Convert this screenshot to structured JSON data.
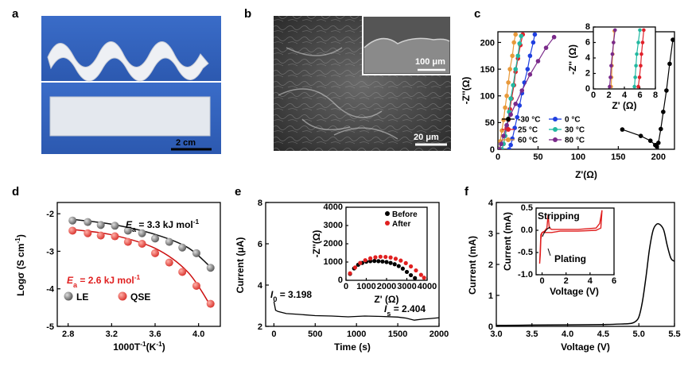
{
  "panels": {
    "a": {
      "label": "a",
      "scale_bar": "2 cm"
    },
    "b": {
      "label": "b",
      "scale_bar_main": "20 μm",
      "scale_bar_inset": "100 μm"
    },
    "c": {
      "label": "c",
      "eq": "",
      "_": ""
    },
    "d": {
      "label": "d"
    },
    "e": {
      "label": "e"
    },
    "f": {
      "label": "f"
    }
  },
  "annotations": {
    "d_ea_le_prefix": "E",
    "d_ea_le_sub": "a",
    "d_ea_le_value": " = 3.3 kJ mol",
    "d_ea_qse_value": " = 2.6 kJ mol",
    "d_ea_sup": "-1",
    "e_i0_prefix": "I",
    "e_i0_sub": "0",
    "e_i0_value": " = 3.198",
    "e_is_prefix": "I",
    "e_is_sub": "s",
    "e_is_value": " = 2.404",
    "f_stripping": "Stripping",
    "f_plating": "Plating"
  },
  "colors": {
    "c_m30": "#000000",
    "c_0": "#1f3fe0",
    "c_25": "#e0202a",
    "c_30": "#22b8a0",
    "c_60": "#e8993a",
    "c_80": "#7a2a8a",
    "d_le": "#555555",
    "d_qse": "#e84a4a",
    "d_fit_le": "#111111",
    "d_fit_qse": "#cc1010",
    "e_before": "#000000",
    "e_after": "#e02020",
    "f_inset": "#e02020"
  },
  "chart_data": [
    {
      "id": "c",
      "type": "scatter",
      "title": "",
      "xlabel": "Z'(Ω)",
      "ylabel": "-Z''(Ω)",
      "xlim": [
        0,
        220
      ],
      "ylim": [
        0,
        220
      ],
      "xticks": [
        0,
        50,
        100,
        150,
        200
      ],
      "yticks": [
        0,
        50,
        100,
        150,
        200
      ],
      "series": [
        {
          "name": "-30 °C",
          "color_key": "c_m30",
          "points": [
            [
              155,
              37
            ],
            [
              178,
              25
            ],
            [
              190,
              16
            ],
            [
              196,
              8
            ],
            [
              198,
              5
            ],
            [
              200,
              12
            ],
            [
              203,
              38
            ],
            [
              206,
              70
            ],
            [
              210,
              110
            ],
            [
              214,
              160
            ],
            [
              218,
              205
            ]
          ]
        },
        {
          "name": "0 °C",
          "color_key": "c_0",
          "points": [
            [
              14,
              0
            ],
            [
              16,
              8
            ],
            [
              18,
              20
            ],
            [
              21,
              40
            ],
            [
              24,
              60
            ],
            [
              27,
              82
            ],
            [
              30,
              105
            ],
            [
              33,
              125
            ],
            [
              37,
              150
            ],
            [
              40,
              175
            ],
            [
              44,
              200
            ],
            [
              46,
              215
            ]
          ]
        },
        {
          "name": "25 °C",
          "color_key": "c_25",
          "points": [
            [
              5,
              0
            ],
            [
              7,
              10
            ],
            [
              9,
              25
            ],
            [
              11,
              40
            ],
            [
              13,
              55
            ],
            [
              15,
              75
            ],
            [
              17,
              95
            ],
            [
              20,
              120
            ],
            [
              22,
              145
            ],
            [
              25,
              170
            ],
            [
              28,
              195
            ],
            [
              31,
              215
            ]
          ]
        },
        {
          "name": "30 °C",
          "color_key": "c_30",
          "points": [
            [
              5,
              0
            ],
            [
              7,
              10
            ],
            [
              9,
              25
            ],
            [
              11,
              45
            ],
            [
              14,
              70
            ],
            [
              16,
              95
            ],
            [
              19,
              120
            ],
            [
              22,
              150
            ],
            [
              25,
              175
            ],
            [
              27,
              198
            ],
            [
              29,
              212
            ]
          ]
        },
        {
          "name": "60 °C",
          "color_key": "c_60",
          "points": [
            [
              2,
              0
            ],
            [
              3,
              15
            ],
            [
              5,
              35
            ],
            [
              7,
              55
            ],
            [
              9,
              78
            ],
            [
              11,
              100
            ],
            [
              13,
              125
            ],
            [
              15,
              150
            ],
            [
              18,
              175
            ],
            [
              20,
              200
            ],
            [
              22,
              215
            ]
          ]
        },
        {
          "name": "80 °C",
          "color_key": "c_80",
          "points": [
            [
              2,
              0
            ],
            [
              4,
              10
            ],
            [
              7,
              25
            ],
            [
              11,
              45
            ],
            [
              16,
              65
            ],
            [
              22,
              85
            ],
            [
              30,
              110
            ],
            [
              40,
              140
            ],
            [
              50,
              165
            ],
            [
              60,
              190
            ],
            [
              70,
              210
            ]
          ]
        }
      ],
      "inset": {
        "xlabel": "Z' (Ω)",
        "ylabel": "-Z'' (Ω)",
        "xlim": [
          0,
          8
        ],
        "ylim": [
          0,
          8
        ],
        "xticks": [
          0,
          2,
          4,
          6,
          8
        ],
        "yticks": [
          0,
          2,
          4,
          6,
          8
        ],
        "series": [
          {
            "color_key": "c_60",
            "points": [
              [
                2.3,
                0.3
              ],
              [
                2.35,
                1.5
              ],
              [
                2.4,
                3
              ],
              [
                2.5,
                4.5
              ],
              [
                2.6,
                6
              ],
              [
                2.7,
                7.5
              ]
            ]
          },
          {
            "color_key": "c_80",
            "points": [
              [
                2.1,
                0.3
              ],
              [
                2.2,
                1.5
              ],
              [
                2.3,
                3
              ],
              [
                2.45,
                4.5
              ],
              [
                2.6,
                6
              ],
              [
                2.8,
                7.6
              ]
            ]
          },
          {
            "color_key": "c_30",
            "points": [
              [
                5.3,
                0.3
              ],
              [
                5.4,
                1.5
              ],
              [
                5.5,
                3
              ],
              [
                5.6,
                4.5
              ],
              [
                5.8,
                6
              ],
              [
                6.0,
                7.6
              ]
            ]
          },
          {
            "color_key": "c_25",
            "points": [
              [
                5.8,
                0.3
              ],
              [
                5.95,
                1.5
              ],
              [
                6.1,
                3
              ],
              [
                6.2,
                4.5
              ],
              [
                6.35,
                6
              ],
              [
                6.5,
                7.6
              ]
            ]
          }
        ]
      }
    },
    {
      "id": "d",
      "type": "scatter",
      "title": "",
      "xlabel": "1000T",
      "xlabel_sup": "-1",
      "xlabel_unit": "(K",
      "xlabel_unit_sup": "-1",
      "xlabel_end": ")",
      "ylabel": "Logσ (S cm",
      "ylabel_sup": "-1",
      "ylabel_end": ")",
      "xlim": [
        2.7,
        4.2
      ],
      "ylim": [
        -5,
        -1.7
      ],
      "xticks": [
        2.8,
        3.2,
        3.6,
        4.0
      ],
      "yticks": [
        -2,
        -3,
        -4,
        -5
      ],
      "series": [
        {
          "name": "LE",
          "color_key": "d_le",
          "x": [
            2.84,
            2.98,
            3.1,
            3.23,
            3.35,
            3.48,
            3.6,
            3.73,
            3.85,
            3.98,
            4.11
          ],
          "y": [
            -2.18,
            -2.22,
            -2.3,
            -2.32,
            -2.45,
            -2.52,
            -2.66,
            -2.75,
            -2.9,
            -3.05,
            -3.44
          ]
        },
        {
          "name": "QSE",
          "color_key": "d_qse",
          "x": [
            2.84,
            2.98,
            3.1,
            3.23,
            3.35,
            3.48,
            3.6,
            3.73,
            3.85,
            3.98,
            4.11
          ],
          "y": [
            -2.45,
            -2.52,
            -2.58,
            -2.6,
            -2.75,
            -2.8,
            -3.05,
            -3.3,
            -3.55,
            -3.92,
            -4.4
          ]
        }
      ],
      "fits": [
        {
          "color_key": "d_fit_le",
          "x": [
            2.84,
            3.2,
            3.6,
            3.9,
            4.11
          ],
          "y": [
            -2.15,
            -2.28,
            -2.55,
            -2.9,
            -3.42
          ]
        },
        {
          "color_key": "d_fit_qse",
          "x": [
            2.84,
            3.2,
            3.6,
            3.9,
            4.11
          ],
          "y": [
            -2.42,
            -2.56,
            -2.92,
            -3.55,
            -4.45
          ]
        }
      ]
    },
    {
      "id": "e",
      "type": "line",
      "title": "",
      "xlabel": "Time (s)",
      "ylabel": "Current (μA)",
      "xlim": [
        -100,
        2000
      ],
      "ylim": [
        2,
        8
      ],
      "xticks": [
        0,
        500,
        1000,
        1500,
        2000
      ],
      "yticks": [
        2,
        4,
        6,
        8
      ],
      "x": [
        0,
        20,
        50,
        150,
        300,
        500,
        700,
        900,
        1100,
        1300,
        1500,
        1600,
        1700,
        1800,
        1900,
        2000
      ],
      "y": [
        3.2,
        2.78,
        2.72,
        2.62,
        2.58,
        2.52,
        2.5,
        2.46,
        2.5,
        2.48,
        2.45,
        2.4,
        2.3,
        2.35,
        2.38,
        2.42
      ],
      "inset": {
        "xlabel": "Z' (Ω)",
        "ylabel": "-Z''(Ω)",
        "xlim": [
          0,
          4000
        ],
        "ylim": [
          0,
          4000
        ],
        "xticks": [
          0,
          1000,
          2000,
          3000,
          4000
        ],
        "yticks": [
          0,
          1000,
          2000,
          3000,
          4000
        ],
        "series": [
          {
            "name": "Before",
            "color_key": "e_before",
            "x": [
              200,
              400,
              600,
              800,
              1000,
              1200,
              1400,
              1600,
              1800,
              2000,
              2200,
              2400,
              2600,
              2800,
              3000,
              3200,
              3400
            ],
            "y": [
              350,
              650,
              850,
              950,
              1020,
              1050,
              1060,
              1050,
              1030,
              1000,
              950,
              880,
              780,
              640,
              460,
              280,
              120
            ]
          },
          {
            "name": "After",
            "color_key": "e_after",
            "x": [
              200,
              450,
              700,
              950,
              1200,
              1450,
              1700,
              1950,
              2200,
              2450,
              2700,
              2950,
              3200,
              3450,
              3700,
              3850
            ],
            "y": [
              380,
              700,
              950,
              1100,
              1200,
              1260,
              1290,
              1280,
              1250,
              1180,
              1080,
              940,
              760,
              540,
              300,
              140
            ]
          }
        ]
      }
    },
    {
      "id": "f",
      "type": "line",
      "title": "",
      "xlabel": "Voltage (V)",
      "ylabel": "Current (mA)",
      "xlim": [
        3.0,
        5.5
      ],
      "ylim": [
        0,
        4
      ],
      "xticks": [
        3.0,
        3.5,
        4.0,
        4.5,
        5.0,
        5.5
      ],
      "yticks": [
        0,
        1,
        2,
        3,
        4
      ],
      "x": [
        3.0,
        3.5,
        4.0,
        4.5,
        4.8,
        4.9,
        4.95,
        5.0,
        5.05,
        5.1,
        5.15,
        5.2,
        5.25,
        5.3,
        5.35,
        5.4,
        5.45,
        5.5
      ],
      "y": [
        0.03,
        0.04,
        0.05,
        0.06,
        0.08,
        0.1,
        0.15,
        0.3,
        0.8,
        1.6,
        2.5,
        3.1,
        3.3,
        3.28,
        3.1,
        2.6,
        2.2,
        2.1
      ],
      "inset": {
        "xlabel": "Voltage (V)",
        "ylabel": "Current (mA)",
        "xlim": [
          -0.5,
          6
        ],
        "ylim": [
          -1.0,
          0.5
        ],
        "xticks": [
          0,
          2,
          4,
          6
        ],
        "yticks": [
          -1.0,
          -0.5,
          0.0,
          0.5
        ],
        "x": [
          -0.2,
          -0.15,
          -0.1,
          0.0,
          0.2,
          0.4,
          0.5,
          0.6,
          0.8,
          1.5,
          3.0,
          4.5,
          4.8,
          4.9,
          5.0,
          4.9,
          4.5,
          3.0,
          1.5,
          0.8,
          0.3,
          0.0,
          -0.1,
          -0.15,
          -0.2
        ],
        "y": [
          -0.75,
          -0.55,
          -0.2,
          -0.05,
          -0.02,
          0.05,
          0.35,
          0.05,
          0.02,
          0.02,
          0.02,
          0.05,
          0.15,
          0.3,
          0.45,
          0.05,
          0.0,
          -0.02,
          -0.02,
          -0.05,
          -0.05,
          -0.05,
          -0.1,
          -0.4,
          -0.75
        ]
      }
    }
  ]
}
